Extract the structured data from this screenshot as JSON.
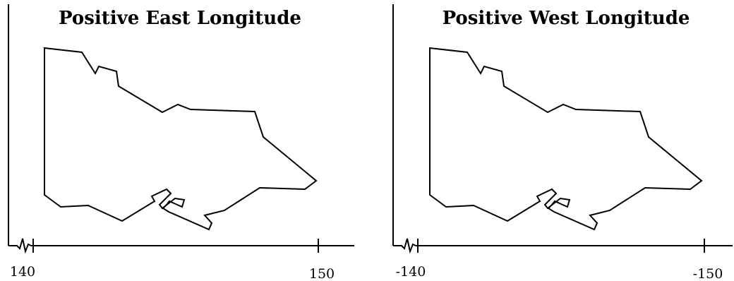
{
  "panels": [
    {
      "title": "Positive East Longitude",
      "x_ticks": [
        "140",
        "150"
      ]
    },
    {
      "title": "Positive West Longitude",
      "x_ticks": [
        "-140",
        "-150"
      ]
    }
  ],
  "colors": {
    "ink": "#000000",
    "background": "#ffffff"
  }
}
